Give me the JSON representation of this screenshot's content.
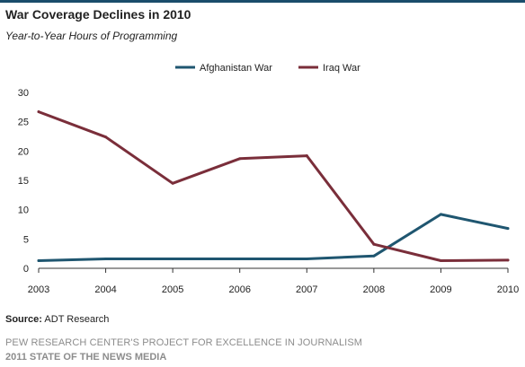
{
  "header": {
    "title": "War Coverage Declines in 2010",
    "subtitle": "Year-to-Year Hours of Programming"
  },
  "chart_data": {
    "type": "line",
    "x": [
      "2003",
      "2004",
      "2005",
      "2006",
      "2007",
      "2008",
      "2009",
      "2010"
    ],
    "series": [
      {
        "name": "Afghanistan War",
        "color": "#1f5670",
        "values": [
          1.3,
          1.6,
          1.6,
          1.6,
          1.6,
          2.1,
          9.2,
          6.8
        ]
      },
      {
        "name": "Iraq War",
        "color": "#7a2e3a",
        "values": [
          26.7,
          22.4,
          14.5,
          18.7,
          19.2,
          4.1,
          1.3,
          1.4
        ]
      }
    ],
    "y_ticks": [
      "0",
      "5",
      "10",
      "15",
      "20",
      "25",
      "30"
    ],
    "ylim": [
      0,
      30
    ],
    "xlabel": "",
    "ylabel": "",
    "grid": false,
    "legend_position": "top-center"
  },
  "source": {
    "label": "Source:",
    "text": " ADT Research"
  },
  "footer": {
    "line1": "PEW RESEARCH CENTER'S PROJECT FOR EXCELLENCE IN JOURNALISM",
    "line2": "2011 STATE OF THE NEWS MEDIA"
  }
}
